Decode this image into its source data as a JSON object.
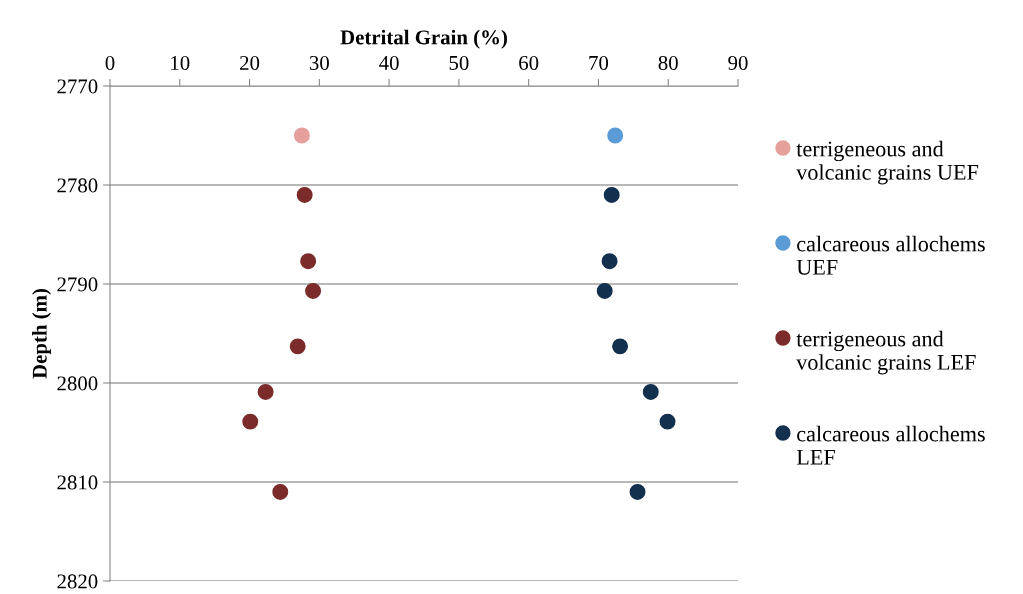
{
  "chart_data": {
    "type": "scatter",
    "xlabel": "Detrital Grain (%)",
    "ylabel": "Depth (m)",
    "xlim": [
      0,
      90
    ],
    "xticks": [
      0,
      10,
      20,
      30,
      40,
      50,
      60,
      70,
      80,
      90
    ],
    "ylim": [
      2820,
      2770
    ],
    "yticks": [
      2770,
      2780,
      2790,
      2800,
      2810,
      2820
    ],
    "grid": "y",
    "legend": "right",
    "marker": "circle",
    "series": [
      {
        "name": "terrigeneous and volcanic grains UEF",
        "color": "#e6a09c",
        "x": [
          27.5
        ],
        "values": [
          2775
        ]
      },
      {
        "name": "calcareous allochems UEF",
        "color": "#5b9bd5",
        "x": [
          72.4
        ],
        "values": [
          2775
        ]
      },
      {
        "name": "terrigeneous and volcanic grains LEF",
        "color": "#7b2c2a",
        "x": [
          27.9,
          28.4,
          29.1,
          26.9,
          22.3,
          20.1,
          24.4
        ],
        "values": [
          2781.0,
          2787.7,
          2790.7,
          2796.3,
          2800.9,
          2803.9,
          2811.0
        ]
      },
      {
        "name": "calcareous allochems LEF",
        "color": "#14304f",
        "x": [
          71.9,
          71.6,
          70.9,
          73.1,
          77.5,
          79.9,
          75.6
        ],
        "values": [
          2781.0,
          2787.7,
          2790.7,
          2796.3,
          2800.9,
          2803.9,
          2811.0
        ]
      }
    ]
  }
}
